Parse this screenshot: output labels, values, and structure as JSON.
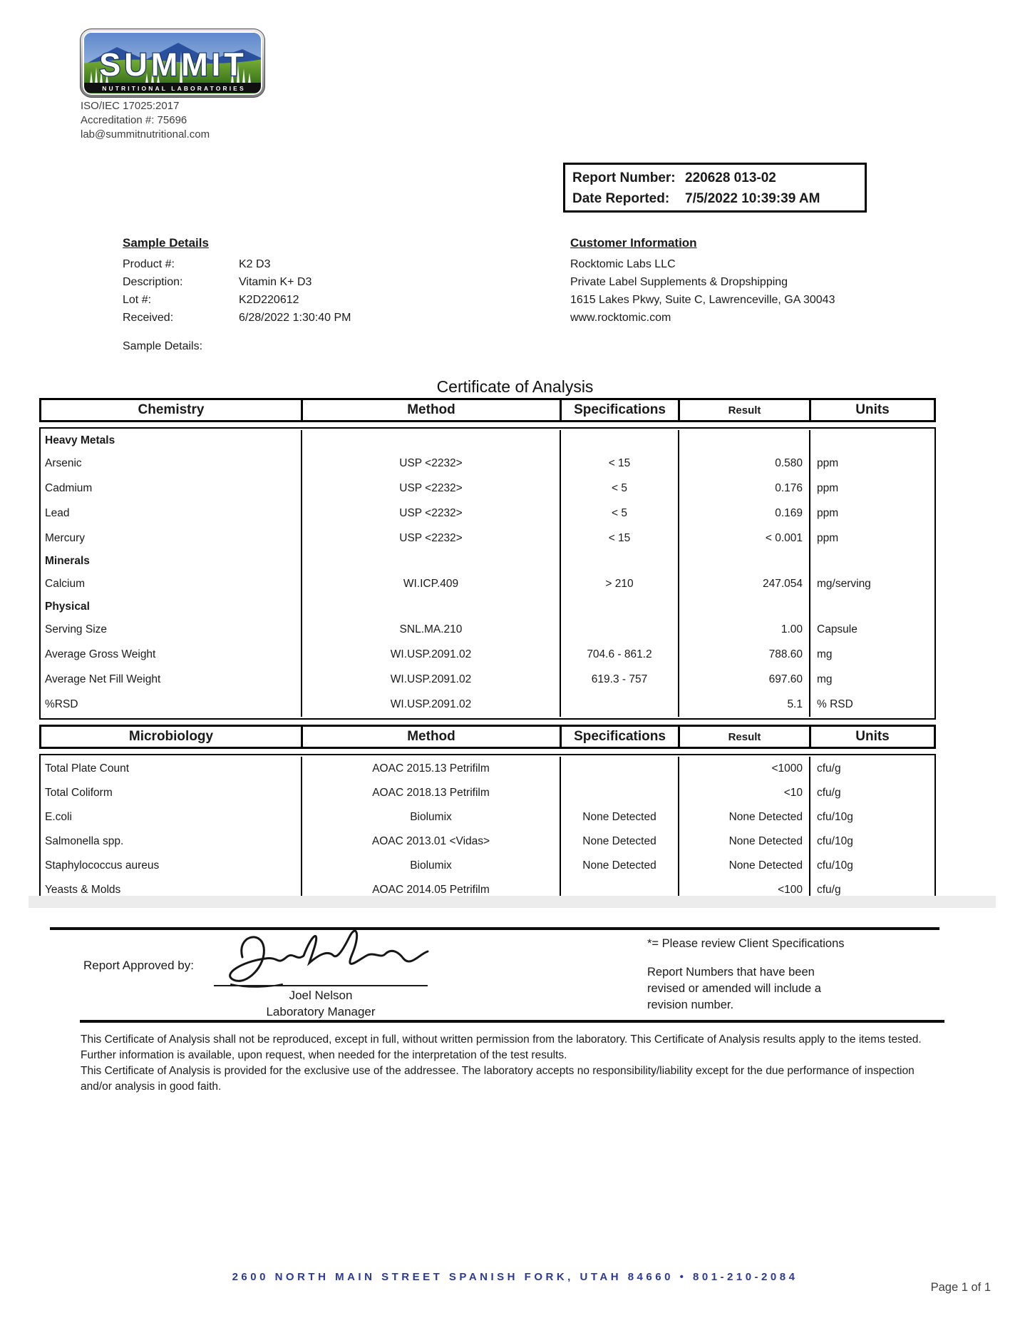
{
  "logo": {
    "name": "SUMMIT",
    "banner": "NUTRITIONAL LABORATORIES"
  },
  "accreditation": {
    "iso": "ISO/IEC 17025:2017",
    "number": "Accreditation #: 75696",
    "email": "lab@summitnutritional.com"
  },
  "report_box": {
    "report_number_label": "Report Number:",
    "report_number": "220628 013-02",
    "date_reported_label": "Date Reported:",
    "date_reported": "7/5/2022 10:39:39 AM"
  },
  "sample_details": {
    "heading": "Sample Details",
    "product_label": "Product #:",
    "product_value": "K2 D3",
    "description_label": "Description:",
    "description_value": "Vitamin K+ D3",
    "lot_label": "Lot #:",
    "lot_value": "K2D220612",
    "received_label": "Received:",
    "received_value": "6/28/2022 1:30:40 PM",
    "extra_label": "Sample Details:"
  },
  "customer_info": {
    "heading": "Customer Information",
    "lines": [
      "Rocktomic Labs LLC",
      "Private Label Supplements & Dropshipping",
      "1615 Lakes Pkwy, Suite C, Lawrenceville, GA 30043",
      "www.rocktomic.com"
    ]
  },
  "title": "Certificate of Analysis",
  "chemistry_table": {
    "headers": [
      "Chemistry",
      "Method",
      "Specifications",
      "Result",
      "Units"
    ],
    "rows": [
      {
        "type": "section",
        "name": "Heavy Metals"
      },
      {
        "type": "data",
        "name": "Arsenic",
        "method": "USP <2232>",
        "spec": "< 15",
        "result": "0.580",
        "units": "ppm"
      },
      {
        "type": "data",
        "name": "Cadmium",
        "method": "USP <2232>",
        "spec": "< 5",
        "result": "0.176",
        "units": "ppm"
      },
      {
        "type": "data",
        "name": "Lead",
        "method": "USP <2232>",
        "spec": "< 5",
        "result": "0.169",
        "units": "ppm"
      },
      {
        "type": "data",
        "name": "Mercury",
        "method": "USP <2232>",
        "spec": "< 15",
        "result": "< 0.001",
        "units": "ppm"
      },
      {
        "type": "section",
        "name": "Minerals"
      },
      {
        "type": "data",
        "name": "Calcium",
        "method": "WI.ICP.409",
        "spec": "> 210",
        "result": "247.054",
        "units": "mg/serving"
      },
      {
        "type": "section",
        "name": "Physical"
      },
      {
        "type": "data",
        "name": "Serving Size",
        "method": "SNL.MA.210",
        "spec": "",
        "result": "1.00",
        "units": "Capsule"
      },
      {
        "type": "data",
        "name": "Average Gross Weight",
        "method": "WI.USP.2091.02",
        "spec": "704.6 - 861.2",
        "result": "788.60",
        "units": "mg"
      },
      {
        "type": "data",
        "name": "Average Net Fill Weight",
        "method": "WI.USP.2091.02",
        "spec": "619.3 - 757",
        "result": "697.60",
        "units": "mg"
      },
      {
        "type": "data",
        "name": "%RSD",
        "method": "WI.USP.2091.02",
        "spec": "",
        "result": "5.1",
        "units": "% RSD"
      }
    ]
  },
  "microbiology_table": {
    "headers": [
      "Microbiology",
      "Method",
      "Specifications",
      "Result",
      "Units"
    ],
    "rows": [
      {
        "type": "data",
        "name": "Total Plate Count",
        "method": "AOAC 2015.13 Petrifilm",
        "spec": "",
        "result": "<1000",
        "units": "cfu/g"
      },
      {
        "type": "data",
        "name": "Total Coliform",
        "method": "AOAC 2018.13 Petrifilm",
        "spec": "",
        "result": "<10",
        "units": "cfu/g"
      },
      {
        "type": "data",
        "name": "E.coli",
        "method": "Biolumix",
        "spec": "None Detected",
        "result": "None Detected",
        "units": "cfu/10g"
      },
      {
        "type": "data",
        "name": "Salmonella spp.",
        "method": "AOAC 2013.01 <Vidas>",
        "spec": "None Detected",
        "result": "None Detected",
        "units": "cfu/10g"
      },
      {
        "type": "data",
        "name": "Staphylococcus aureus",
        "method": "Biolumix",
        "spec": "None Detected",
        "result": "None Detected",
        "units": "cfu/10g"
      },
      {
        "type": "data",
        "name": "Yeasts & Molds",
        "method": "AOAC 2014.05 Petrifilm",
        "spec": "",
        "result": "<100",
        "units": "cfu/g"
      }
    ]
  },
  "approval": {
    "label": "Report Approved by:",
    "name": "Joel Nelson",
    "title": "Laboratory Manager"
  },
  "notes": {
    "note1": "*= Please review Client Specifications",
    "note2": "Report Numbers that have been revised or amended will include a revision number."
  },
  "disclaimer": {
    "p1": "This Certificate of Analysis shall not be reproduced, except in full, without written permission from the laboratory. This Certificate of Analysis results apply to the items tested. Further information is available, upon request, when needed for the interpretation of the test results.",
    "p2": "This Certificate of Analysis is provided for the exclusive use of the addressee. The laboratory accepts no responsibility/liability except for the due performance of inspection and/or analysis in good faith."
  },
  "footer": {
    "address": "2600 North Main Street  Spanish Fork, Utah  84660 • 801-210-2084",
    "page": "Page 1 of 1"
  }
}
